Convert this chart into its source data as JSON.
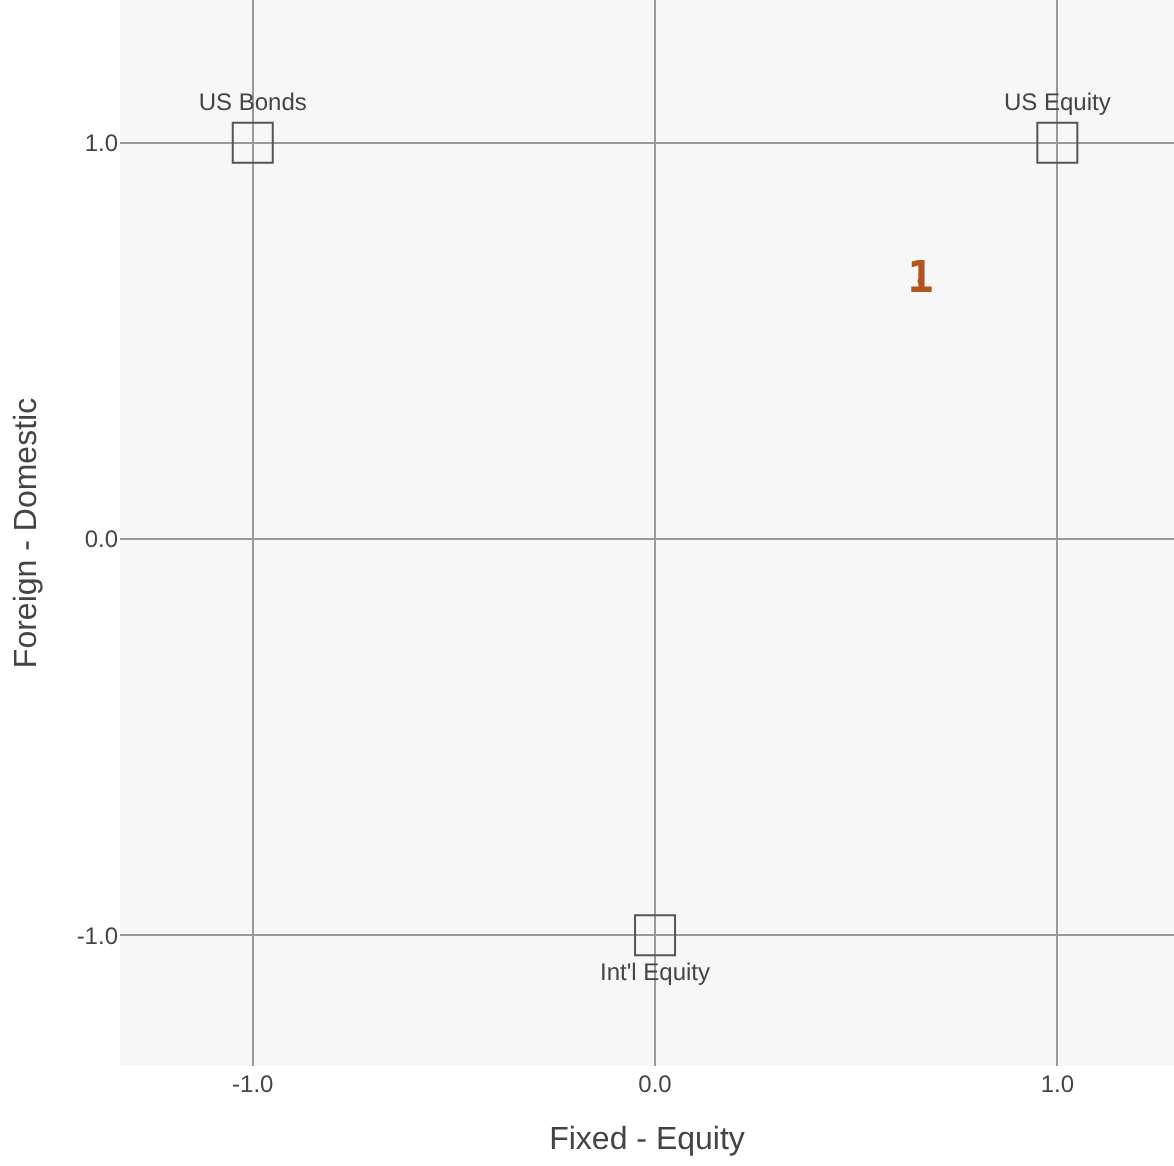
{
  "chart_data": {
    "type": "scatter",
    "xlabel": "Fixed - Equity",
    "ylabel": "Foreign - Domestic",
    "xlim": [
      -1.33,
      1.29
    ],
    "ylim": [
      -1.33,
      1.36
    ],
    "xticks": [
      {
        "value": -1,
        "label": "-1.0"
      },
      {
        "value": 0,
        "label": "0.0"
      },
      {
        "value": 1,
        "label": "1.0"
      }
    ],
    "yticks": [
      {
        "value": -1,
        "label": "-1.0"
      },
      {
        "value": 0,
        "label": "0.0"
      },
      {
        "value": 1,
        "label": "1.0"
      }
    ],
    "grid": true,
    "series": [
      {
        "x": [
          -1,
          1,
          0
        ],
        "values": [
          1,
          1,
          -1
        ],
        "color": "#555555",
        "marker": "square",
        "value_labels": [
          "US Bonds",
          "US Equity",
          "Int'l Equity"
        ]
      },
      {
        "x": [
          0.66
        ],
        "values": [
          0.65
        ],
        "color": "#b5531f",
        "marker": "none",
        "value_labels": [
          "1"
        ]
      }
    ]
  }
}
